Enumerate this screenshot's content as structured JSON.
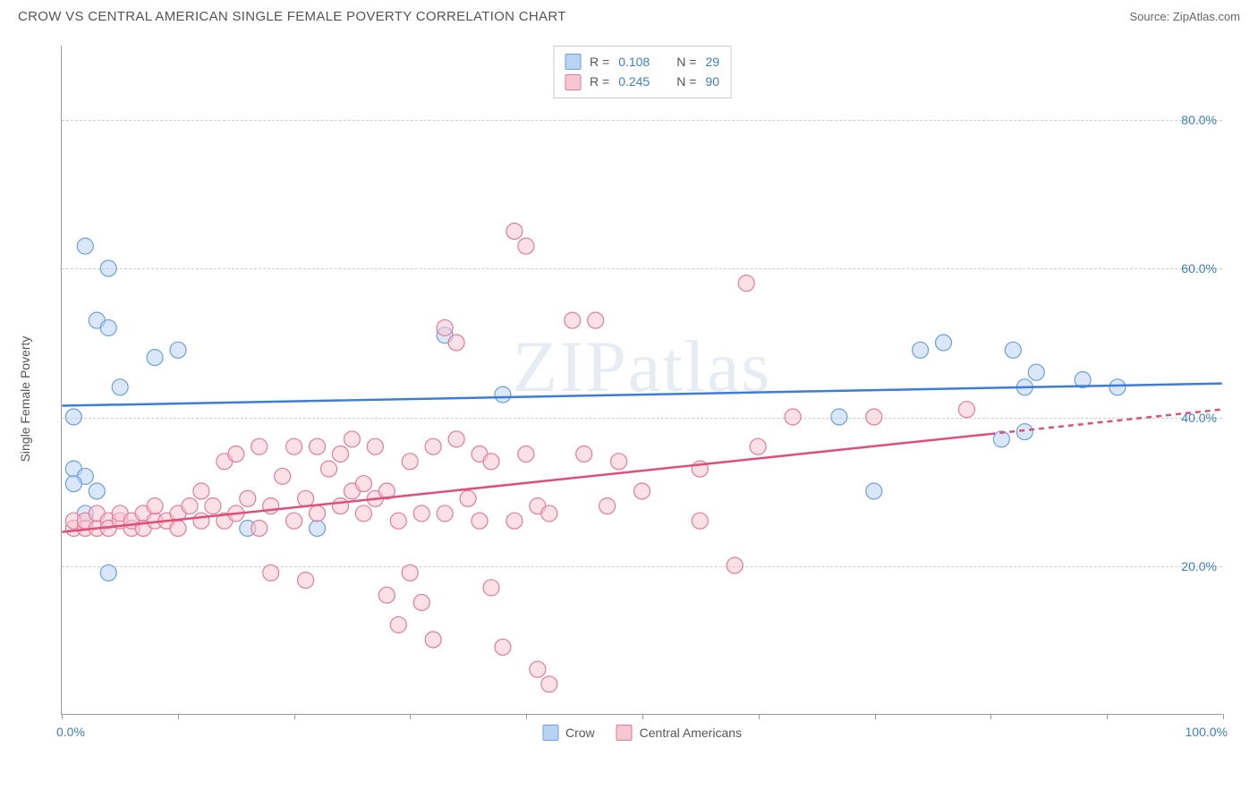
{
  "header": {
    "title": "CROW VS CENTRAL AMERICAN SINGLE FEMALE POVERTY CORRELATION CHART",
    "source": "Source: ZipAtlas.com"
  },
  "watermark": "ZIPatlas",
  "axes": {
    "ylabel": "Single Female Poverty",
    "xlim": [
      0,
      100
    ],
    "ylim": [
      0,
      90
    ],
    "yticks": [
      20,
      40,
      60,
      80
    ],
    "ytick_labels": [
      "20.0%",
      "40.0%",
      "60.0%",
      "80.0%"
    ],
    "xtick_positions": [
      0,
      10,
      20,
      30,
      40,
      50,
      60,
      70,
      80,
      90,
      100
    ],
    "xstart_label": "0.0%",
    "xend_label": "100.0%",
    "grid_color": "#cccccc",
    "axis_color": "#999999",
    "tick_label_color": "#3b7dd8",
    "label_fontsize": 14
  },
  "legend_top": {
    "series": [
      {
        "swatch_fill": "#b9d4f2",
        "swatch_stroke": "#6aa0e0",
        "r_label": "R =",
        "r_value": "0.108",
        "n_label": "N =",
        "n_value": "29"
      },
      {
        "swatch_fill": "#f6c7d3",
        "swatch_stroke": "#e77a9a",
        "r_label": "R =",
        "r_value": "0.245",
        "n_label": "N =",
        "n_value": "90"
      }
    ]
  },
  "legend_bottom": {
    "items": [
      {
        "swatch_fill": "#b9d4f2",
        "swatch_stroke": "#6aa0e0",
        "label": "Crow"
      },
      {
        "swatch_fill": "#f6c7d3",
        "swatch_stroke": "#e77a9a",
        "label": "Central Americans"
      }
    ]
  },
  "chart": {
    "type": "scatter",
    "background": "#ffffff",
    "marker_radius": 9,
    "marker_opacity": 0.55,
    "series": [
      {
        "name": "Crow",
        "color_fill": "#b9d4f2",
        "color_stroke": "#6aa0e0",
        "trend": {
          "y_at_x0": 41.5,
          "y_at_x100": 44.5,
          "color": "#3b7dd8",
          "width": 2.5,
          "dash_from_x": null
        },
        "points": [
          [
            1,
            40
          ],
          [
            2,
            63
          ],
          [
            4,
            60
          ],
          [
            3,
            53
          ],
          [
            4,
            52
          ],
          [
            8,
            48
          ],
          [
            10,
            49
          ],
          [
            5,
            44
          ],
          [
            1,
            33
          ],
          [
            2,
            32
          ],
          [
            1,
            31
          ],
          [
            3,
            30
          ],
          [
            4,
            19
          ],
          [
            16,
            25
          ],
          [
            22,
            25
          ],
          [
            33,
            51
          ],
          [
            38,
            43
          ],
          [
            67,
            40
          ],
          [
            74,
            49
          ],
          [
            76,
            50
          ],
          [
            82,
            49
          ],
          [
            83,
            44
          ],
          [
            81,
            37
          ],
          [
            83,
            38
          ],
          [
            84,
            46
          ],
          [
            88,
            45
          ],
          [
            91,
            44
          ],
          [
            70,
            30
          ],
          [
            2,
            27
          ]
        ]
      },
      {
        "name": "Central Americans",
        "color_fill": "#f6c7d3",
        "color_stroke": "#e77a9a",
        "trend": {
          "y_at_x0": 24.5,
          "y_at_x100": 41.0,
          "color": "#e04e7a",
          "width": 2.5,
          "dash_from_x": 80
        },
        "points": [
          [
            1,
            25
          ],
          [
            1,
            26
          ],
          [
            2,
            25
          ],
          [
            2,
            26
          ],
          [
            3,
            25
          ],
          [
            3,
            27
          ],
          [
            4,
            26
          ],
          [
            4,
            25
          ],
          [
            5,
            26
          ],
          [
            5,
            27
          ],
          [
            6,
            25
          ],
          [
            6,
            26
          ],
          [
            7,
            27
          ],
          [
            7,
            25
          ],
          [
            8,
            26
          ],
          [
            8,
            28
          ],
          [
            9,
            26
          ],
          [
            10,
            27
          ],
          [
            10,
            25
          ],
          [
            11,
            28
          ],
          [
            12,
            26
          ],
          [
            12,
            30
          ],
          [
            13,
            28
          ],
          [
            14,
            26
          ],
          [
            14,
            34
          ],
          [
            15,
            27
          ],
          [
            15,
            35
          ],
          [
            16,
            29
          ],
          [
            17,
            25
          ],
          [
            17,
            36
          ],
          [
            18,
            28
          ],
          [
            18,
            19
          ],
          [
            19,
            32
          ],
          [
            20,
            26
          ],
          [
            20,
            36
          ],
          [
            21,
            29
          ],
          [
            21,
            18
          ],
          [
            22,
            36
          ],
          [
            22,
            27
          ],
          [
            23,
            33
          ],
          [
            24,
            28
          ],
          [
            24,
            35
          ],
          [
            25,
            30
          ],
          [
            25,
            37
          ],
          [
            26,
            31
          ],
          [
            26,
            27
          ],
          [
            27,
            36
          ],
          [
            27,
            29
          ],
          [
            28,
            30
          ],
          [
            28,
            16
          ],
          [
            29,
            26
          ],
          [
            29,
            12
          ],
          [
            30,
            34
          ],
          [
            30,
            19
          ],
          [
            31,
            27
          ],
          [
            31,
            15
          ],
          [
            32,
            36
          ],
          [
            32,
            10
          ],
          [
            33,
            52
          ],
          [
            33,
            27
          ],
          [
            34,
            50
          ],
          [
            34,
            37
          ],
          [
            35,
            29
          ],
          [
            36,
            35
          ],
          [
            36,
            26
          ],
          [
            37,
            34
          ],
          [
            37,
            17
          ],
          [
            38,
            9
          ],
          [
            39,
            26
          ],
          [
            39,
            65
          ],
          [
            40,
            63
          ],
          [
            40,
            35
          ],
          [
            41,
            28
          ],
          [
            41,
            6
          ],
          [
            42,
            27
          ],
          [
            42,
            4
          ],
          [
            44,
            53
          ],
          [
            45,
            35
          ],
          [
            46,
            53
          ],
          [
            47,
            28
          ],
          [
            48,
            34
          ],
          [
            55,
            33
          ],
          [
            55,
            26
          ],
          [
            58,
            20
          ],
          [
            59,
            58
          ],
          [
            60,
            36
          ],
          [
            63,
            40
          ],
          [
            70,
            40
          ],
          [
            78,
            41
          ],
          [
            50,
            30
          ]
        ]
      }
    ]
  }
}
